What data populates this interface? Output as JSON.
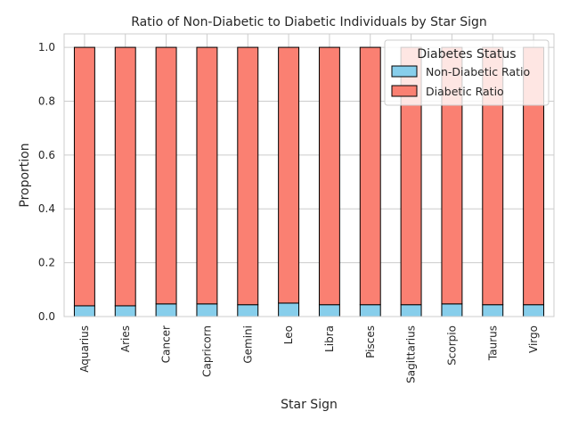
{
  "chart_data": {
    "type": "bar",
    "stacked": true,
    "title": "Ratio of Non-Diabetic to Diabetic Individuals by Star Sign",
    "xlabel": "Star Sign",
    "ylabel": "Proportion",
    "ylim": [
      0,
      1.05
    ],
    "yticks": [
      "0.0",
      "0.2",
      "0.4",
      "0.6",
      "0.8",
      "1.0"
    ],
    "grid": true,
    "legend": {
      "title": "Diabetes Status",
      "placement": "top-right"
    },
    "categories": [
      "Aquarius",
      "Aries",
      "Cancer",
      "Capricorn",
      "Gemini",
      "Leo",
      "Libra",
      "Pisces",
      "Sagittarius",
      "Scorpio",
      "Taurus",
      "Virgo"
    ],
    "series": [
      {
        "name": "Non-Diabetic Ratio",
        "color": "#87ceeb",
        "values": [
          0.04,
          0.04,
          0.047,
          0.047,
          0.044,
          0.05,
          0.044,
          0.044,
          0.044,
          0.047,
          0.044,
          0.044
        ]
      },
      {
        "name": "Diabetic Ratio",
        "color": "#fa8072",
        "values": [
          0.96,
          0.96,
          0.953,
          0.953,
          0.956,
          0.95,
          0.956,
          0.956,
          0.956,
          0.953,
          0.956,
          0.956
        ]
      }
    ]
  }
}
